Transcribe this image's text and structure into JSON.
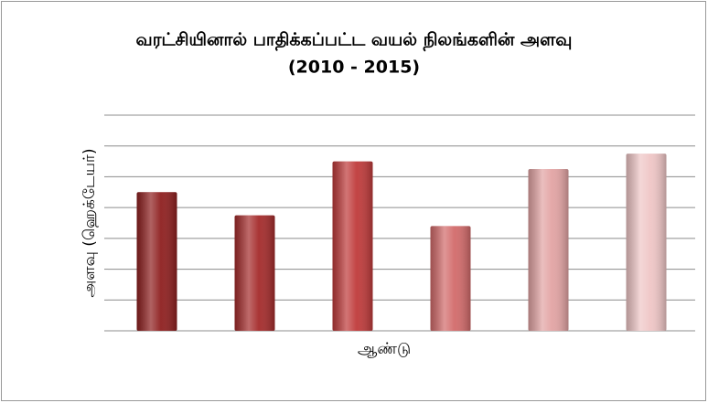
{
  "chart_data": {
    "type": "bar",
    "title": "வரட்சியினால் பாதிக்கப்பட்ட வயல் நிலங்களின் அளவு",
    "subtitle": "(2010  -  2015)",
    "x_label": "ஆண்டு",
    "y_label": "அளவு  (ஹெக்டேயர்)",
    "categories": [
      null,
      null,
      null,
      null,
      null,
      null
    ],
    "values": [
      4.5,
      3.75,
      5.5,
      3.4,
      5.25,
      5.75
    ],
    "colors": [
      "#8e1f1f",
      "#a42b2b",
      "#bf3a3a",
      "#d26a6a",
      "#e2a3a3",
      "#efc6c6"
    ],
    "ylim": [
      0,
      7
    ],
    "yticks": [
      0,
      1,
      2,
      3,
      4,
      5,
      6,
      7
    ],
    "grid": true
  }
}
